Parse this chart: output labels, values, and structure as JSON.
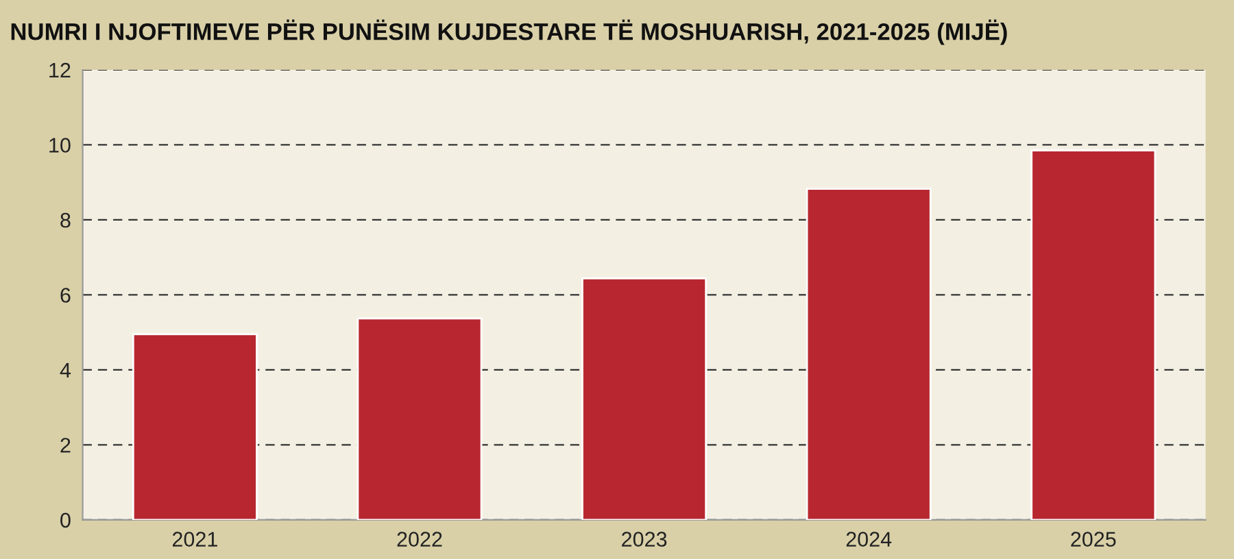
{
  "chart_data": {
    "type": "bar",
    "title": "NUMRI I NJOFTIMEVE PËR PUNËSIM KUJDESTARE TË MOSHUARISH, 2021-2025 (MIJË)",
    "categories": [
      "2021",
      "2022",
      "2023",
      "2024",
      "2025"
    ],
    "values": [
      4.95,
      5.37,
      6.44,
      8.83,
      9.85
    ],
    "color": "#b8272f",
    "ylim": [
      0,
      12
    ],
    "yticks": [
      0,
      2,
      4,
      6,
      8,
      10,
      12
    ],
    "grid": "y",
    "legend": false
  }
}
